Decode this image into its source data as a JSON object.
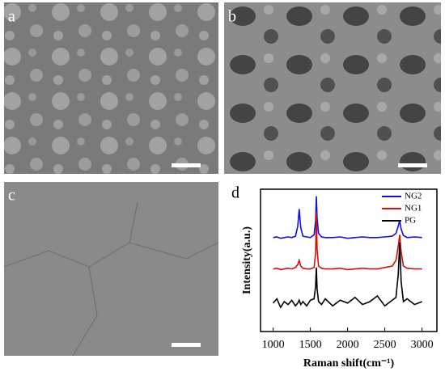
{
  "panels": {
    "a": "a",
    "b": "b",
    "c": "c",
    "d": "d"
  },
  "chart_data": {
    "type": "line",
    "xlabel": "Raman shift(cm⁻¹)",
    "ylabel": "Intensity(a.u.)",
    "x": [
      1000,
      1050,
      1100,
      1150,
      1200,
      1250,
      1300,
      1330,
      1350,
      1370,
      1400,
      1450,
      1500,
      1550,
      1570,
      1580,
      1590,
      1610,
      1650,
      1700,
      1800,
      1900,
      2000,
      2100,
      2200,
      2300,
      2400,
      2500,
      2600,
      2650,
      2680,
      2700,
      2720,
      2750,
      2800,
      2900,
      3000
    ],
    "series": [
      {
        "name": "NG2",
        "color": "#1010e0",
        "values": [
          6.6,
          6.65,
          6.55,
          6.6,
          6.65,
          6.6,
          6.7,
          7.4,
          8.6,
          7.3,
          6.7,
          6.65,
          6.6,
          6.8,
          7.8,
          9.5,
          8.0,
          6.9,
          6.65,
          6.6,
          6.6,
          6.65,
          6.55,
          6.6,
          6.65,
          6.6,
          6.6,
          6.65,
          6.7,
          6.9,
          7.4,
          7.8,
          7.2,
          6.75,
          6.6,
          6.65,
          6.6
        ]
      },
      {
        "name": "NG1",
        "color": "#d01010",
        "values": [
          4.4,
          4.45,
          4.35,
          4.4,
          4.45,
          4.4,
          4.5,
          4.7,
          5.0,
          4.6,
          4.45,
          4.4,
          4.4,
          4.5,
          5.5,
          8.4,
          5.8,
          4.6,
          4.45,
          4.4,
          4.4,
          4.45,
          4.35,
          4.4,
          4.45,
          4.4,
          4.4,
          4.5,
          4.6,
          5.0,
          6.0,
          6.8,
          5.6,
          4.6,
          4.45,
          4.4,
          4.4
        ]
      },
      {
        "name": "PG",
        "color": "#000000",
        "values": [
          2.0,
          2.3,
          1.7,
          2.1,
          1.9,
          2.2,
          1.8,
          2.0,
          2.2,
          1.9,
          2.1,
          1.8,
          2.2,
          2.3,
          3.2,
          4.5,
          3.0,
          2.1,
          1.9,
          2.3,
          1.8,
          2.2,
          2.0,
          2.4,
          1.9,
          2.1,
          2.5,
          1.8,
          2.2,
          2.4,
          4.0,
          6.25,
          3.5,
          2.1,
          2.3,
          1.9,
          2.1
        ]
      }
    ],
    "xlim": [
      830,
      3200
    ],
    "ylim": [
      0,
      10
    ],
    "xticks": [
      1000,
      1500,
      2000,
      2500,
      3000
    ],
    "legend": "upper right"
  }
}
